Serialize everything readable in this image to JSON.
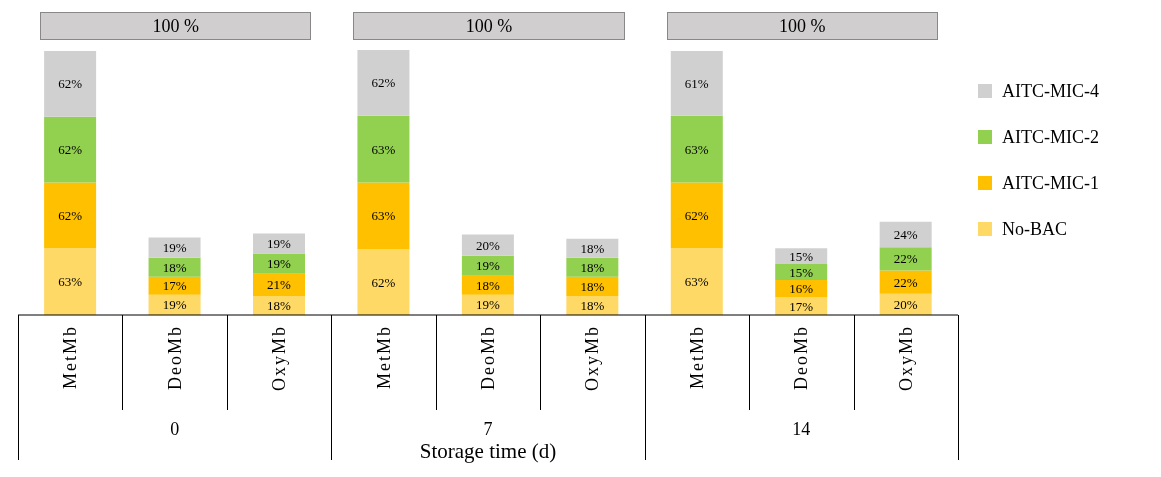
{
  "chart_data": {
    "type": "bar",
    "stacked": true,
    "legend": "right",
    "xlabel": "Storage time (d)",
    "categories": [
      "MetMb",
      "DeoMb",
      "OxyMb",
      "MetMb",
      "DeoMb",
      "OxyMb",
      "MetMb",
      "DeoMb",
      "OxyMb"
    ],
    "annotations": [
      "100 %",
      "100 %",
      "100 %",
      "0",
      "7",
      "14"
    ],
    "series": [
      {
        "name": "No-BAC",
        "color": "#ffd966",
        "values": [
          63,
          19,
          18,
          62,
          19,
          18,
          63,
          17,
          20
        ],
        "value_labels": [
          "63%",
          "19%",
          "18%",
          "62%",
          "19%",
          "18%",
          "63%",
          "17%",
          "20%"
        ]
      },
      {
        "name": "AITC-MIC-1",
        "color": "#ffc000",
        "values": [
          62,
          17,
          21,
          63,
          18,
          18,
          62,
          16,
          22
        ],
        "value_labels": [
          "62%",
          "17%",
          "21%",
          "63%",
          "18%",
          "18%",
          "62%",
          "16%",
          "22%"
        ]
      },
      {
        "name": "AITC-MIC-2",
        "color": "#92d050",
        "values": [
          62,
          18,
          19,
          63,
          19,
          18,
          63,
          15,
          22
        ],
        "value_labels": [
          "62%",
          "18%",
          "19%",
          "63%",
          "19%",
          "18%",
          "63%",
          "15%",
          "22%"
        ]
      },
      {
        "name": "AITC-MIC-4",
        "color": "#d0d0d0",
        "values": [
          62,
          19,
          19,
          62,
          20,
          18,
          61,
          15,
          24
        ],
        "value_labels": [
          "62%",
          "19%",
          "19%",
          "62%",
          "20%",
          "18%",
          "61%",
          "15%",
          "24%"
        ]
      }
    ]
  }
}
